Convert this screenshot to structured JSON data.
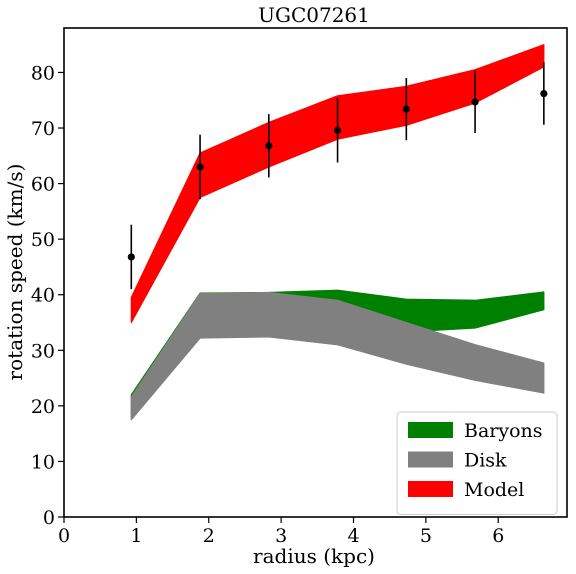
{
  "chart_data": {
    "type": "area",
    "title": "UGC07261",
    "xlabel": "radius (kpc)",
    "ylabel": "rotation speed (km/s)",
    "xlim": [
      0,
      6.95
    ],
    "ylim": [
      0,
      88
    ],
    "xticks": [
      0,
      1,
      2,
      3,
      4,
      5,
      6
    ],
    "yticks": [
      0,
      10,
      20,
      30,
      40,
      50,
      60,
      70,
      80
    ],
    "grid": false,
    "legend_position": "lower-right",
    "series": [
      {
        "name": "Baryons",
        "color": "#008000",
        "x": [
          0.93,
          1.88,
          2.83,
          3.78,
          4.73,
          5.68,
          6.63
        ],
        "lower": [
          18.0,
          32.8,
          33.0,
          33.8,
          33.3,
          34.0,
          37.3
        ],
        "upper": [
          22.0,
          40.3,
          40.4,
          40.8,
          39.2,
          39.0,
          40.5
        ]
      },
      {
        "name": "Disk",
        "color": "#808080",
        "x": [
          0.93,
          1.88,
          2.83,
          3.78,
          4.73,
          5.68,
          6.63
        ],
        "lower": [
          17.5,
          32.2,
          32.4,
          31.0,
          27.5,
          24.6,
          22.3
        ],
        "upper": [
          21.6,
          40.2,
          40.4,
          39.0,
          35.0,
          31.0,
          27.7
        ]
      },
      {
        "name": "Model",
        "color": "#ff0000",
        "x": [
          0.93,
          1.88,
          2.83,
          3.78,
          4.73,
          5.68,
          6.63
        ],
        "lower": [
          35.0,
          57.5,
          63.0,
          68.0,
          70.5,
          74.5,
          81.0
        ],
        "upper": [
          39.5,
          65.5,
          71.0,
          75.8,
          77.5,
          80.5,
          85.0
        ]
      },
      {
        "name": "",
        "type": "errorbar",
        "color": "#000000",
        "x": [
          0.93,
          1.88,
          2.83,
          3.78,
          4.73,
          5.68,
          6.63
        ],
        "y": [
          46.8,
          63.0,
          66.8,
          69.6,
          73.4,
          74.7,
          76.2
        ],
        "yerr": [
          5.8,
          5.8,
          5.7,
          5.8,
          5.6,
          5.6,
          5.6
        ]
      }
    ]
  }
}
